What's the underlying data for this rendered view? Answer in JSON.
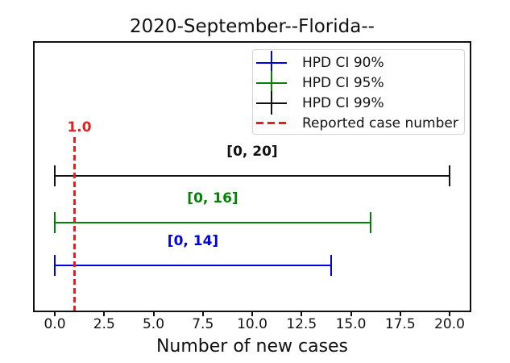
{
  "figure": {
    "title": "2020-September--Florida--",
    "xlabel": "Number of new cases"
  },
  "chart_data": {
    "type": "errorbar",
    "title": "2020-September--Florida--",
    "xlabel": "Number of new cases",
    "ylabel": "",
    "xlim": [
      -0.75,
      20.6
    ],
    "xticks": [
      "0.0",
      "2.5",
      "5.0",
      "7.5",
      "10.0",
      "12.5",
      "15.0",
      "17.5",
      "20.0"
    ],
    "xtick_values": [
      0,
      2.5,
      5,
      7.5,
      10,
      12.5,
      15,
      17.5,
      20
    ],
    "grid": false,
    "legend_position": "upper right",
    "series": [
      {
        "name": "HPD CI 90%",
        "color": "#0000e0",
        "interval": [
          0,
          14
        ],
        "annotation": "[0, 14]"
      },
      {
        "name": "HPD CI 95%",
        "color": "#048004",
        "interval": [
          0,
          16
        ],
        "annotation": "[0, 16]"
      },
      {
        "name": "HPD CI 99%",
        "color": "#111111",
        "interval": [
          0,
          20
        ],
        "annotation": "[0, 20]"
      }
    ],
    "reported_case": {
      "name": "Reported case number",
      "x": 1.0,
      "annotation": "1.0",
      "color": "#e62020",
      "style": "dashed"
    }
  }
}
